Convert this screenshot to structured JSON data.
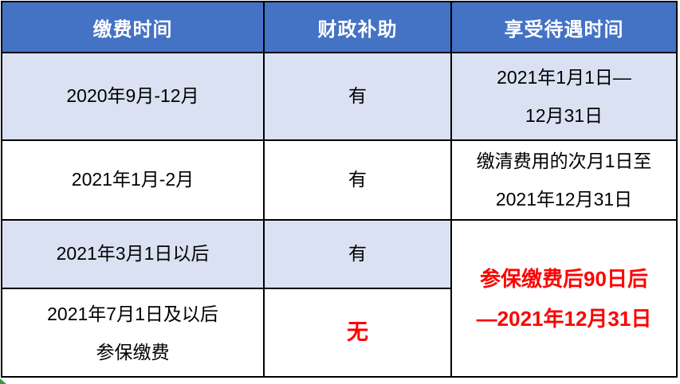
{
  "table": {
    "headers": [
      {
        "label": "缴费时间"
      },
      {
        "label": "财政补助"
      },
      {
        "label": "享受待遇时间"
      }
    ],
    "rows": [
      {
        "pay_time": "2020年9月-12月",
        "subsidy": "有",
        "benefit_lines": [
          "2021年1月1日—",
          "12月31日"
        ]
      },
      {
        "pay_time": "2021年1月-2月",
        "subsidy": "有",
        "benefit_lines": [
          "缴清费用的次月1日至",
          "2021年12月31日"
        ]
      },
      {
        "pay_time": "2021年3月1日以后",
        "subsidy": "有"
      },
      {
        "pay_time_lines": [
          "2021年7月1日及以后",
          "参保缴费"
        ],
        "subsidy": "无"
      }
    ],
    "merged_benefit_lines": [
      "参保缴费后90日后",
      "—2021年12月31日"
    ]
  },
  "colors": {
    "header_bg": "#4472C4",
    "header_text": "#FFFFFF",
    "alt_row_bg": "#D9E1F2",
    "row_bg": "#FFFFFF",
    "border": "#000000",
    "highlight_red": "#FE0000",
    "corner_mark_green": "#2E9E3C"
  }
}
